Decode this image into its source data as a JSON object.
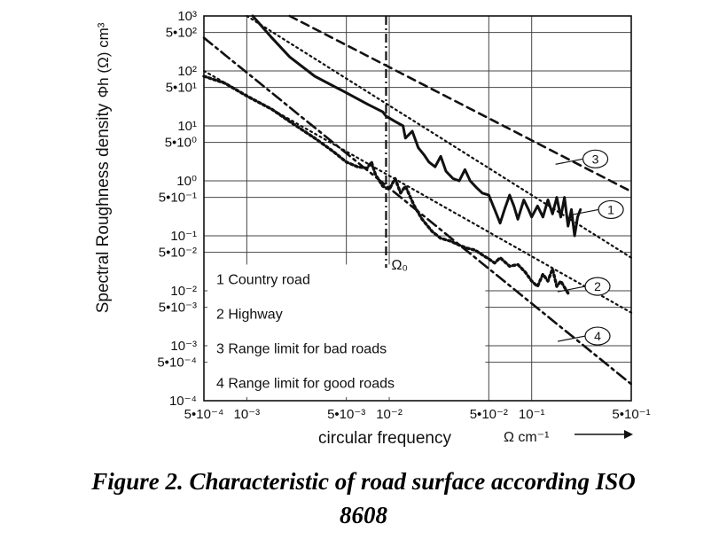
{
  "chart_data": {
    "type": "line",
    "x_scale": "log",
    "y_scale": "log",
    "xlim": [
      0.0005,
      0.5
    ],
    "ylim": [
      0.0001,
      1000
    ],
    "grid": true,
    "xlabel": "circular frequency",
    "x_unit_label": "Ω cm⁻¹",
    "ylabel_main": "Spectral Roughness density",
    "ylabel_symbol": "Φh (Ω) cm³",
    "x_ticks": [
      {
        "value": 0.0005,
        "label": "5•10⁻⁴"
      },
      {
        "value": 0.001,
        "label": "10⁻³"
      },
      {
        "value": 0.005,
        "label": "5•10⁻³"
      },
      {
        "value": 0.01,
        "label": "10⁻²"
      },
      {
        "value": 0.05,
        "label": "5•10⁻²"
      },
      {
        "value": 0.1,
        "label": "10⁻¹"
      },
      {
        "value": 0.5,
        "label": "5•10⁻¹"
      }
    ],
    "y_ticks": [
      {
        "value": 1000,
        "label": "10³"
      },
      {
        "value": 500,
        "label": "5•10²"
      },
      {
        "value": 100,
        "label": "10²"
      },
      {
        "value": 50,
        "label": "5•10¹"
      },
      {
        "value": 10,
        "label": "10¹"
      },
      {
        "value": 5,
        "label": "5•10⁰"
      },
      {
        "value": 1,
        "label": "10⁰"
      },
      {
        "value": 0.5,
        "label": "5•10⁻¹"
      },
      {
        "value": 0.1,
        "label": "10⁻¹"
      },
      {
        "value": 0.05,
        "label": "5•10⁻²"
      },
      {
        "value": 0.01,
        "label": "10⁻²"
      },
      {
        "value": 0.005,
        "label": "5•10⁻³"
      },
      {
        "value": 0.001,
        "label": "10⁻³"
      },
      {
        "value": 0.0005,
        "label": "5•10⁻⁴"
      },
      {
        "value": 0.0001,
        "label": "10⁻⁴"
      }
    ],
    "omega0": {
      "x": 0.0095,
      "label": "Ω₀"
    },
    "legend": [
      "1 Country road",
      "2 Highway",
      "3 Range limit for bad roads",
      "4 Range limit for good roads"
    ],
    "series": [
      {
        "name": "1",
        "style": "solid",
        "x": [
          0.0011,
          0.0015,
          0.002,
          0.003,
          0.005,
          0.007,
          0.009,
          0.0095,
          0.011,
          0.0125,
          0.013,
          0.0145,
          0.016,
          0.0175,
          0.019,
          0.021,
          0.023,
          0.025,
          0.028,
          0.031,
          0.034,
          0.037,
          0.041,
          0.045,
          0.05,
          0.055,
          0.06,
          0.065,
          0.07,
          0.075,
          0.08,
          0.088,
          0.095,
          0.1,
          0.11,
          0.12,
          0.13,
          0.14,
          0.15,
          0.16,
          0.17,
          0.18,
          0.19,
          0.2,
          0.21,
          0.22
        ],
        "y": [
          1000,
          400,
          180,
          80,
          40,
          25,
          18,
          15,
          12,
          10,
          6,
          8,
          4,
          3,
          2.2,
          1.8,
          2.8,
          1.5,
          1.1,
          1.0,
          1.6,
          1.0,
          0.75,
          0.6,
          0.55,
          0.3,
          0.17,
          0.32,
          0.55,
          0.35,
          0.2,
          0.45,
          0.3,
          0.22,
          0.35,
          0.22,
          0.45,
          0.25,
          0.5,
          0.22,
          0.5,
          0.15,
          0.3,
          0.1,
          0.22,
          0.3
        ]
      },
      {
        "name": "2",
        "style": "dotted",
        "x": [
          0.0005,
          0.0007,
          0.001,
          0.0015,
          0.002,
          0.003,
          0.004,
          0.005,
          0.006,
          0.007,
          0.0075,
          0.008,
          0.009,
          0.01,
          0.011,
          0.012,
          0.013,
          0.015,
          0.017,
          0.02,
          0.023,
          0.027,
          0.03,
          0.035,
          0.04,
          0.045,
          0.05,
          0.055,
          0.06,
          0.07,
          0.08,
          0.09,
          0.1,
          0.11,
          0.12,
          0.13,
          0.14,
          0.15,
          0.16,
          0.18
        ],
        "y": [
          80,
          60,
          35,
          20,
          12,
          6,
          3.5,
          2.2,
          1.8,
          1.7,
          2.2,
          1.3,
          0.8,
          0.7,
          1.1,
          0.6,
          0.8,
          0.35,
          0.2,
          0.12,
          0.09,
          0.08,
          0.07,
          0.06,
          0.055,
          0.045,
          0.038,
          0.032,
          0.04,
          0.028,
          0.03,
          0.022,
          0.015,
          0.012,
          0.02,
          0.015,
          0.025,
          0.012,
          0.015,
          0.009
        ]
      },
      {
        "name": "3",
        "style": "dashed",
        "x": [
          0.002,
          0.5
        ],
        "y": [
          1000,
          0.64
        ]
      },
      {
        "name": "4",
        "style": "dashdot",
        "x": [
          0.0005,
          0.5
        ],
        "y": [
          400,
          0.0002
        ]
      },
      {
        "name": "",
        "style": "dotted-thin",
        "x": [
          0.001,
          0.5
        ],
        "y": [
          1000,
          0.04
        ]
      },
      {
        "name": "",
        "style": "dotted-thin",
        "x": [
          0.0005,
          0.5
        ],
        "y": [
          100,
          0.004
        ]
      }
    ],
    "labels": [
      {
        "text": "3",
        "x": 0.28,
        "y": 2.5
      },
      {
        "text": "1",
        "x": 0.36,
        "y": 0.3
      },
      {
        "text": "2",
        "x": 0.29,
        "y": 0.012
      },
      {
        "text": "4",
        "x": 0.29,
        "y": 0.0015
      }
    ]
  },
  "caption": {
    "line1": "Figure 2. Characteristic of road surface according ISO",
    "line2": "8608"
  }
}
